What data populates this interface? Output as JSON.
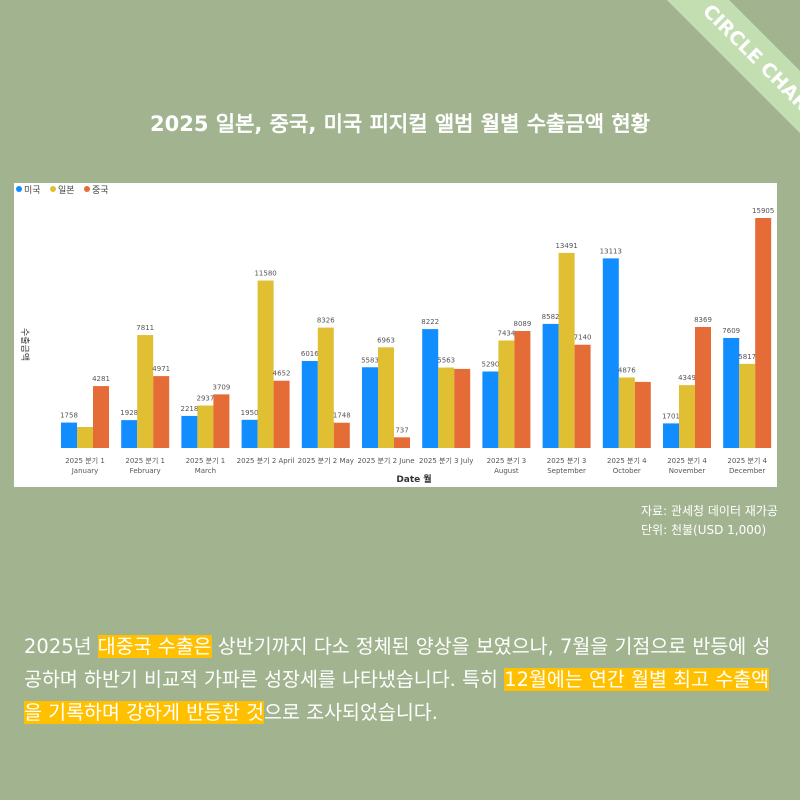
{
  "brand": "CIRCLE CHART",
  "source": "자료: 관세청 데이터 재가공",
  "unit": "단위: 천불(USD 1,000)",
  "paragraph": [
    {
      "text": "2025년 ",
      "hl": false
    },
    {
      "text": "대중국 수출은",
      "hl": true
    },
    {
      "text": " 상반기까지 다소 정체된 양상을 보였으나, 7월을 기점으로 반등에 성공하며 하반기 비교적 가파른 성장세를 나타냈습니다. 특히 ",
      "hl": false
    },
    {
      "text": "12월에는 연간 월별 최고 수출액을 기록하며 강하게 반등한 것",
      "hl": true
    },
    {
      "text": "으로 조사되었습니다.",
      "hl": false
    }
  ],
  "chart_data": {
    "type": "bar",
    "title": "2025 일본, 중국, 미국 피지컬 앨범 월별 수출금액 현황",
    "xlabel": "Date 월",
    "ylabel": "수출금액",
    "legend_position": "top-left",
    "grid": false,
    "ylim": [
      0,
      16500
    ],
    "categories": [
      [
        "2025 분기 1",
        "January"
      ],
      [
        "2025 분기 1",
        "February"
      ],
      [
        "2025 분기 1",
        "March"
      ],
      [
        "2025 분기 2 April"
      ],
      [
        "2025 분기 2 May"
      ],
      [
        "2025 분기 2 June"
      ],
      [
        "2025 분기 3 July"
      ],
      [
        "2025 분기 3",
        "August"
      ],
      [
        "2025 분기 3",
        "September"
      ],
      [
        "2025 분기 4",
        "October"
      ],
      [
        "2025 분기 4",
        "November"
      ],
      [
        "2025 분기 4",
        "December"
      ]
    ],
    "series": [
      {
        "name": "미국",
        "color": "#118dff",
        "values": [
          1758,
          1928,
          2218,
          1950,
          6016,
          5583,
          8222,
          5290,
          8582,
          13113,
          1701,
          7609
        ],
        "labeled": [
          1,
          1,
          1,
          1,
          1,
          1,
          1,
          1,
          1,
          1,
          1,
          1
        ]
      },
      {
        "name": "일본",
        "color": "#e0bf32",
        "values": [
          1450,
          7811,
          2937,
          11580,
          8326,
          6963,
          5563,
          7434,
          13491,
          4876,
          4349,
          5817
        ],
        "labeled": [
          0,
          1,
          1,
          1,
          1,
          1,
          1,
          1,
          1,
          1,
          1,
          1
        ]
      },
      {
        "name": "중국",
        "color": "#e66c37",
        "values": [
          4281,
          4971,
          3709,
          4652,
          1748,
          737,
          5470,
          8089,
          7140,
          4570,
          8369,
          15905
        ],
        "labeled": [
          1,
          1,
          1,
          1,
          1,
          1,
          0,
          1,
          1,
          0,
          1,
          1
        ]
      }
    ]
  }
}
